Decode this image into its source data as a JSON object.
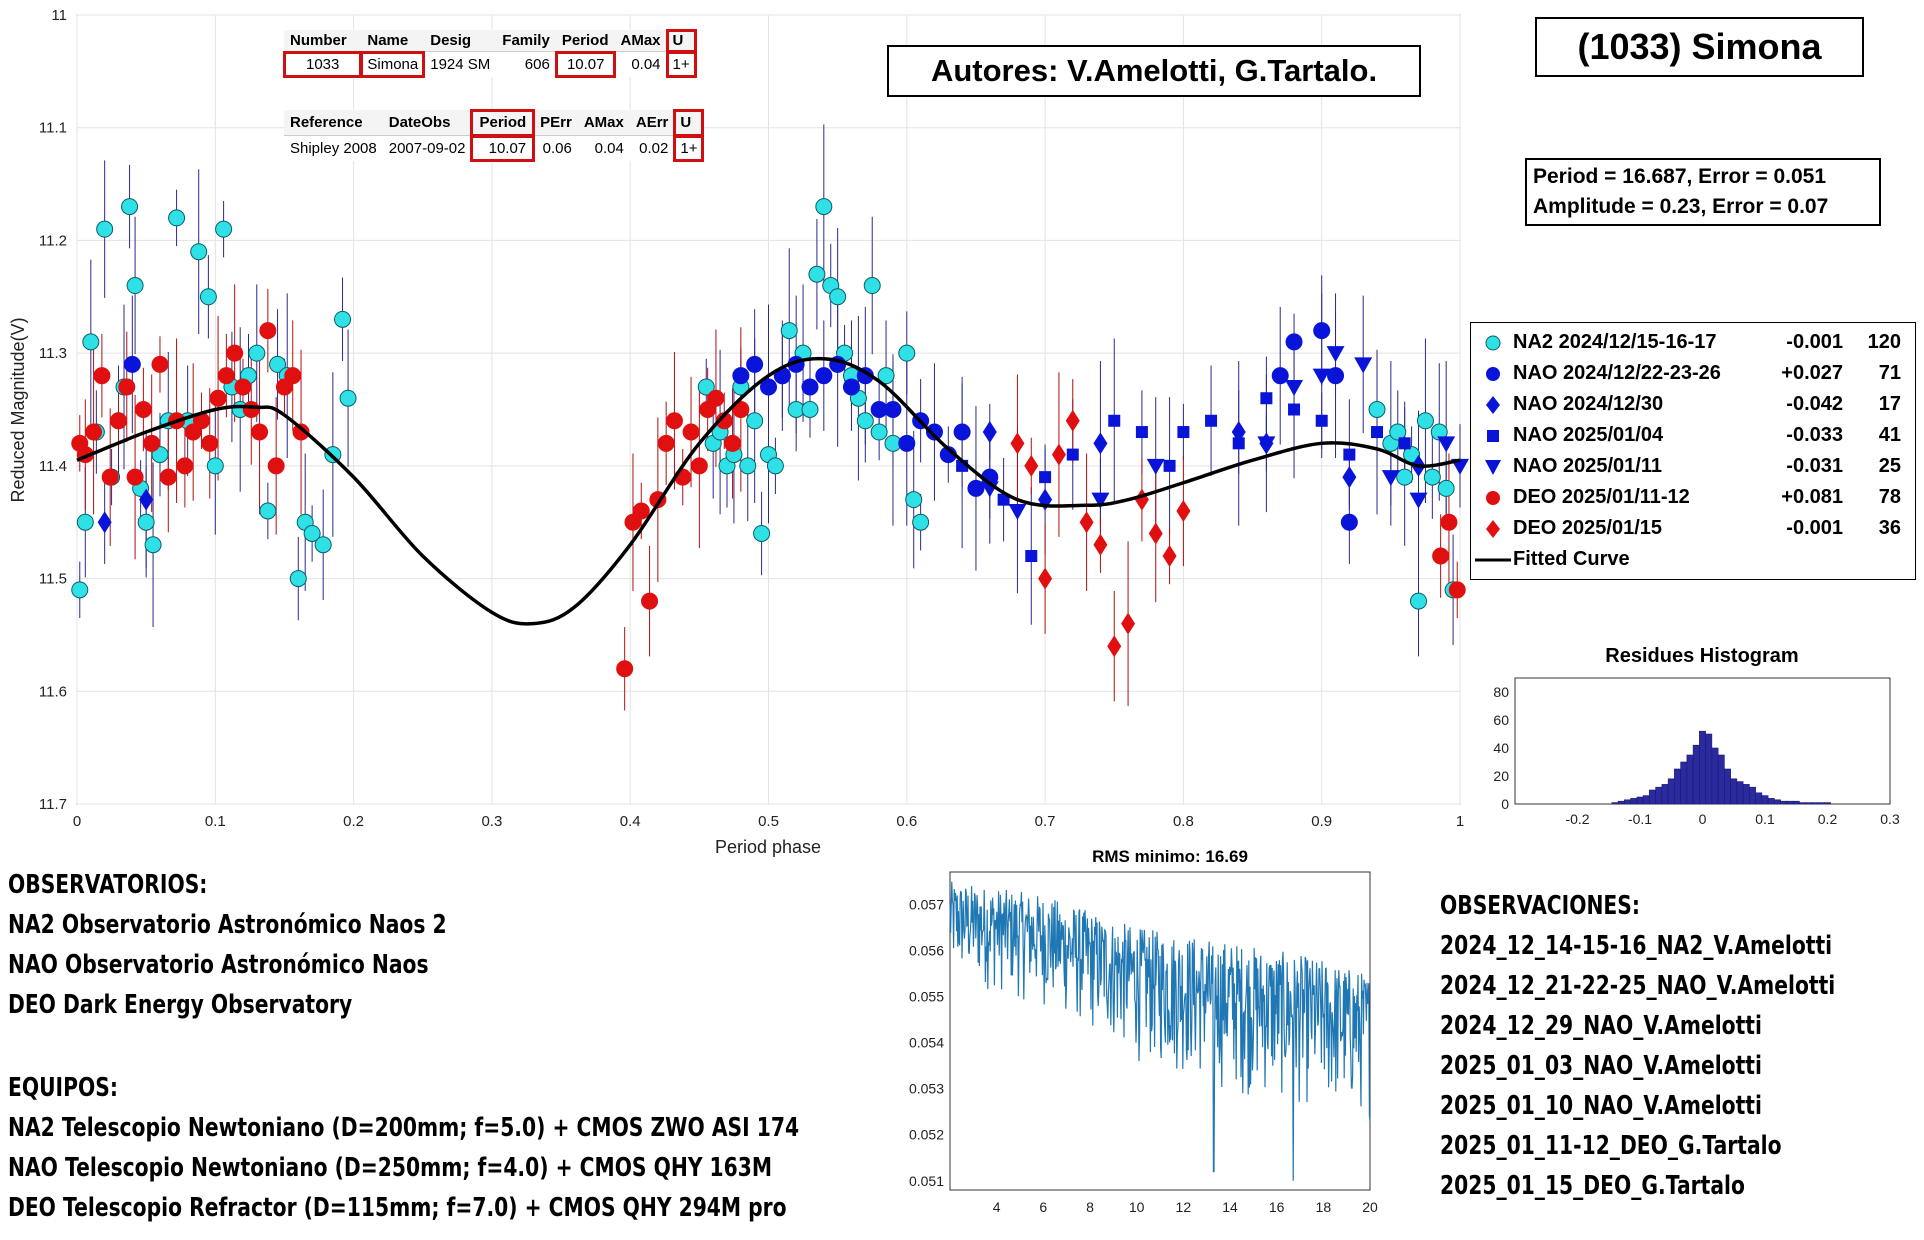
{
  "title_box": "(1033) Simona",
  "authors": "Autores: V.Amelotti, G.Tartalo.",
  "result_box": {
    "line1": "Period =  16.687, Error = 0.051",
    "line2": "Amplitude = 0.23, Error = 0.07"
  },
  "table1": {
    "headers": [
      "Number",
      "Name",
      "Desig",
      "Family",
      "Period",
      "AMax",
      "U"
    ],
    "row": [
      "1033",
      "Simona",
      "1924 SM",
      "606",
      "10.07",
      "0.04",
      "1+"
    ]
  },
  "table2": {
    "headers": [
      "Reference",
      "DateObs",
      "Period",
      "PErr",
      "AMax",
      "AErr",
      "U"
    ],
    "row": [
      "Shipley 2008",
      "2007-09-02",
      "10.07",
      "0.06",
      "0.04",
      "0.02",
      "1+"
    ]
  },
  "colors": {
    "cyan": "#2fe0e6",
    "blue": "#0a14d8",
    "red": "#e01010",
    "highlight": "#d01010",
    "hist": "#2b2a9e",
    "rms": "#1f77b4"
  },
  "chart_data": [
    {
      "type": "scatter",
      "title": "",
      "xlabel": "Period phase",
      "ylabel": "Reduced Magnitude(V)",
      "xlim": [
        0,
        1
      ],
      "ylim": [
        11.7,
        11
      ],
      "y_reversed": true,
      "grid": true,
      "x_ticks": [
        "0",
        "0.1",
        "0.2",
        "0.3",
        "0.4",
        "0.5",
        "0.6",
        "0.7",
        "0.8",
        "0.9",
        "1"
      ],
      "y_ticks": [
        "11",
        "11.1",
        "11.2",
        "11.3",
        "11.4",
        "11.5",
        "11.6",
        "11.7"
      ],
      "legend_position": "right",
      "series": [
        {
          "name": "NA2 2024/12/15-16-17",
          "offset": "-0.001",
          "n": "120",
          "marker": "circle",
          "color": "#2fe0e6",
          "x": [
            0.002,
            0.006,
            0.01,
            0.014,
            0.02,
            0.025,
            0.03,
            0.034,
            0.038,
            0.042,
            0.046,
            0.05,
            0.055,
            0.06,
            0.066,
            0.072,
            0.08,
            0.088,
            0.095,
            0.1,
            0.106,
            0.112,
            0.118,
            0.124,
            0.13,
            0.138,
            0.145,
            0.152,
            0.16,
            0.165,
            0.17,
            0.178,
            0.185,
            0.192,
            0.196,
            0.455,
            0.46,
            0.465,
            0.47,
            0.475,
            0.48,
            0.485,
            0.49,
            0.495,
            0.5,
            0.505,
            0.51,
            0.515,
            0.52,
            0.525,
            0.53,
            0.535,
            0.54,
            0.545,
            0.55,
            0.555,
            0.56,
            0.565,
            0.57,
            0.575,
            0.58,
            0.585,
            0.59,
            0.6,
            0.605,
            0.61,
            0.94,
            0.95,
            0.955,
            0.96,
            0.965,
            0.97,
            0.975,
            0.98,
            0.985,
            0.99,
            0.995
          ],
          "y": [
            11.51,
            11.45,
            11.29,
            11.37,
            11.19,
            11.41,
            11.36,
            11.33,
            11.17,
            11.24,
            11.42,
            11.45,
            11.47,
            11.39,
            11.36,
            11.18,
            11.36,
            11.21,
            11.25,
            11.4,
            11.19,
            11.33,
            11.35,
            11.32,
            11.3,
            11.44,
            11.31,
            11.32,
            11.5,
            11.45,
            11.46,
            11.47,
            11.39,
            11.27,
            11.34,
            11.33,
            11.38,
            11.37,
            11.4,
            11.39,
            11.33,
            11.4,
            11.36,
            11.46,
            11.39,
            11.4,
            11.32,
            11.28,
            11.35,
            11.3,
            11.35,
            11.23,
            11.17,
            11.24,
            11.25,
            11.3,
            11.32,
            11.34,
            11.36,
            11.24,
            11.37,
            11.32,
            11.38,
            11.3,
            11.43,
            11.45,
            11.35,
            11.38,
            11.37,
            11.41,
            11.39,
            11.52,
            11.36,
            11.41,
            11.37,
            11.42,
            11.51
          ]
        },
        {
          "name": "NAO 2024/12/22-23-26",
          "offset": "+0.027",
          "n": "71",
          "marker": "circle",
          "color": "#0a14d8",
          "x": [
            0.04,
            0.48,
            0.49,
            0.5,
            0.51,
            0.52,
            0.53,
            0.54,
            0.55,
            0.56,
            0.57,
            0.58,
            0.59,
            0.6,
            0.61,
            0.62,
            0.63,
            0.64,
            0.65,
            0.66,
            0.87,
            0.88,
            0.9,
            0.91,
            0.92
          ],
          "y": [
            11.31,
            11.32,
            11.31,
            11.33,
            11.32,
            11.31,
            11.33,
            11.32,
            11.31,
            11.33,
            11.32,
            11.35,
            11.35,
            11.38,
            11.36,
            11.37,
            11.39,
            11.37,
            11.42,
            11.41,
            11.32,
            11.29,
            11.28,
            11.32,
            11.45
          ]
        },
        {
          "name": "NAO 2024/12/30",
          "offset": "-0.042",
          "n": "17",
          "marker": "diamond",
          "color": "#0a14d8",
          "x": [
            0.02,
            0.05,
            0.66,
            0.7,
            0.74,
            0.84,
            0.86,
            0.92,
            0.97
          ],
          "y": [
            11.45,
            11.43,
            11.37,
            11.43,
            11.38,
            11.37,
            11.38,
            11.41,
            11.4
          ]
        },
        {
          "name": "NAO 2025/01/04",
          "offset": "-0.033",
          "n": "41",
          "marker": "square",
          "color": "#0a14d8",
          "x": [
            0.64,
            0.67,
            0.69,
            0.7,
            0.72,
            0.75,
            0.77,
            0.79,
            0.8,
            0.82,
            0.84,
            0.86,
            0.88,
            0.9,
            0.92,
            0.94,
            0.96
          ],
          "y": [
            11.4,
            11.43,
            11.48,
            11.41,
            11.39,
            11.36,
            11.37,
            11.4,
            11.37,
            11.36,
            11.38,
            11.34,
            11.35,
            11.36,
            11.39,
            11.37,
            11.38
          ]
        },
        {
          "name": "NAO 2025/01/11",
          "offset": "-0.031",
          "n": "25",
          "marker": "triangle-down",
          "color": "#0a14d8",
          "x": [
            0.66,
            0.68,
            0.74,
            0.78,
            0.86,
            0.88,
            0.9,
            0.91,
            0.93,
            0.95,
            0.97,
            0.99,
            1.0
          ],
          "y": [
            11.42,
            11.44,
            11.43,
            11.4,
            11.38,
            11.33,
            11.32,
            11.3,
            11.31,
            11.41,
            11.43,
            11.38,
            11.4
          ]
        },
        {
          "name": "DEO 2025/01/11-12",
          "offset": "+0.081",
          "n": "78",
          "marker": "circle",
          "color": "#e01010",
          "x": [
            0.002,
            0.006,
            0.012,
            0.018,
            0.024,
            0.03,
            0.036,
            0.042,
            0.048,
            0.054,
            0.06,
            0.066,
            0.072,
            0.078,
            0.084,
            0.09,
            0.096,
            0.102,
            0.108,
            0.114,
            0.12,
            0.126,
            0.132,
            0.138,
            0.144,
            0.15,
            0.156,
            0.162,
            0.396,
            0.402,
            0.408,
            0.414,
            0.42,
            0.426,
            0.432,
            0.438,
            0.444,
            0.45,
            0.456,
            0.462,
            0.468,
            0.474,
            0.48,
            0.986,
            0.992,
            0.998
          ],
          "y": [
            11.38,
            11.39,
            11.37,
            11.32,
            11.41,
            11.36,
            11.33,
            11.41,
            11.35,
            11.38,
            11.31,
            11.41,
            11.36,
            11.4,
            11.37,
            11.36,
            11.38,
            11.34,
            11.32,
            11.3,
            11.33,
            11.35,
            11.37,
            11.28,
            11.4,
            11.33,
            11.32,
            11.37,
            11.58,
            11.45,
            11.44,
            11.52,
            11.43,
            11.38,
            11.36,
            11.41,
            11.37,
            11.4,
            11.35,
            11.34,
            11.36,
            11.38,
            11.35,
            11.48,
            11.45,
            11.51
          ]
        },
        {
          "name": "DEO 2025/01/15",
          "offset": "-0.001",
          "n": "36",
          "marker": "diamond",
          "color": "#e01010",
          "x": [
            0.68,
            0.69,
            0.7,
            0.71,
            0.72,
            0.73,
            0.74,
            0.75,
            0.76,
            0.77,
            0.78,
            0.79,
            0.8
          ],
          "y": [
            11.38,
            11.4,
            11.5,
            11.39,
            11.36,
            11.45,
            11.47,
            11.56,
            11.54,
            11.43,
            11.46,
            11.48,
            11.44
          ]
        }
      ],
      "fitted_curve": {
        "name": "Fitted Curve",
        "x": [
          0,
          0.05,
          0.1,
          0.13,
          0.15,
          0.2,
          0.25,
          0.3,
          0.33,
          0.36,
          0.4,
          0.45,
          0.5,
          0.54,
          0.58,
          0.63,
          0.68,
          0.73,
          0.76,
          0.8,
          0.85,
          0.9,
          0.94,
          0.97,
          1.0
        ],
        "y": [
          11.395,
          11.37,
          11.35,
          11.348,
          11.355,
          11.41,
          11.48,
          11.53,
          11.54,
          11.525,
          11.47,
          11.38,
          11.32,
          11.305,
          11.325,
          11.385,
          11.43,
          11.435,
          11.43,
          11.415,
          11.395,
          11.38,
          11.385,
          11.4,
          11.395
        ]
      }
    },
    {
      "type": "bar",
      "title": "Residues Histogram",
      "xlim": [
        -0.3,
        0.3
      ],
      "ylim": [
        0,
        90
      ],
      "x_ticks": [
        "-0.2",
        "-0.1",
        "0",
        "0.1",
        "0.2",
        "0.3"
      ],
      "y_ticks": [
        "0",
        "20",
        "40",
        "60",
        "80"
      ],
      "bin_centers": [
        -0.14,
        -0.13,
        -0.12,
        -0.11,
        -0.1,
        -0.09,
        -0.08,
        -0.07,
        -0.06,
        -0.05,
        -0.04,
        -0.03,
        -0.02,
        -0.01,
        0,
        0.01,
        0.02,
        0.03,
        0.04,
        0.05,
        0.06,
        0.07,
        0.08,
        0.09,
        0.1,
        0.11,
        0.12,
        0.13,
        0.14,
        0.15,
        0.16,
        0.17,
        0.18,
        0.19,
        0.2
      ],
      "values": [
        1,
        2,
        3,
        4,
        5,
        6,
        10,
        12,
        14,
        18,
        25,
        30,
        35,
        42,
        52,
        50,
        40,
        35,
        25,
        18,
        16,
        14,
        12,
        8,
        6,
        4,
        3,
        2,
        2,
        2,
        1,
        1,
        1,
        1,
        1
      ]
    },
    {
      "type": "line",
      "title": "RMS minimo: 16.69",
      "xlim": [
        2,
        20
      ],
      "ylim": [
        0.0508,
        0.0577
      ],
      "x_ticks": [
        "4",
        "6",
        "8",
        "10",
        "12",
        "14",
        "16",
        "18",
        "20"
      ],
      "y_ticks": [
        "0.057",
        "0.056",
        "0.055",
        "0.054",
        "0.053",
        "0.052",
        "0.051"
      ],
      "trend": {
        "x": [
          2,
          6,
          10,
          14,
          18,
          20
        ],
        "y_upper": [
          0.0575,
          0.0572,
          0.0565,
          0.0562,
          0.0558,
          0.0555
        ],
        "y_lower": [
          0.0553,
          0.0547,
          0.0535,
          0.0528,
          0.0524,
          0.0522
        ]
      },
      "min_dips": [
        {
          "x": 13.3,
          "y": 0.0512
        },
        {
          "x": 16.7,
          "y": 0.051
        }
      ]
    }
  ],
  "observatorios": {
    "heading": "OBSERVATORIOS:",
    "lines": [
      "NA2 Observatorio Astronómico Naos 2",
      "NAO Observatorio Astronómico Naos",
      "DEO Dark Energy Observatory"
    ]
  },
  "equipos": {
    "heading": "EQUIPOS:",
    "lines": [
      "NA2 Telescopio Newtoniano (D=200mm; f=5.0) + CMOS ZWO ASI 174",
      "NAO Telescopio Newtoniano (D=250mm; f=4.0) + CMOS QHY 163M",
      "DEO Telescopio Refractor (D=115mm; f=7.0) + CMOS QHY 294M pro"
    ]
  },
  "observaciones": {
    "heading": "OBSERVACIONES:",
    "lines": [
      "2024_12_14-15-16_NA2_V.Amelotti",
      "2024_12_21-22-25_NAO_V.Amelotti",
      "2024_12_29_NAO_V.Amelotti",
      "2025_01_03_NAO_V.Amelotti",
      "2025_01_10_NAO_V.Amelotti",
      "2025_01_11-12_DEO_G.Tartalo",
      "2025_01_15_DEO_G.Tartalo"
    ]
  }
}
